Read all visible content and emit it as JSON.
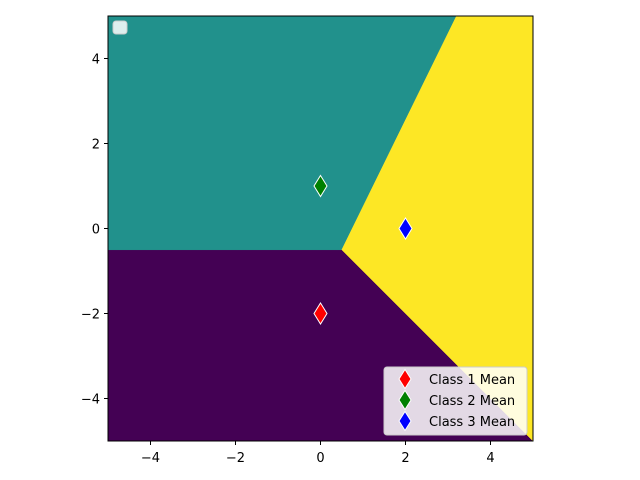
{
  "chart_data": {
    "type": "scatter",
    "title": "",
    "xlabel": "",
    "ylabel": "",
    "xlim": [
      -5,
      5
    ],
    "ylim": [
      -5,
      5
    ],
    "xticks": [
      -4,
      -2,
      0,
      2,
      4
    ],
    "yticks": [
      -4,
      -2,
      0,
      2,
      4
    ],
    "xtick_labels": [
      "−4",
      "−2",
      "0",
      "2",
      "4"
    ],
    "ytick_labels": [
      "−4",
      "−2",
      "0",
      "2",
      "4"
    ],
    "grid": false,
    "decision_regions": [
      {
        "class": 1,
        "color": "#440154",
        "polygon": [
          [
            -5,
            -0.5
          ],
          [
            0.5,
            -0.5
          ],
          [
            5,
            -5
          ],
          [
            -5,
            -5
          ]
        ]
      },
      {
        "class": 2,
        "color": "#21918c",
        "polygon": [
          [
            -5,
            5
          ],
          [
            3.2,
            5
          ],
          [
            0.5,
            -0.5
          ],
          [
            -5,
            -0.5
          ]
        ]
      },
      {
        "class": 3,
        "color": "#fde725",
        "polygon": [
          [
            3.2,
            5
          ],
          [
            5,
            5
          ],
          [
            5,
            -5
          ],
          [
            0.5,
            -0.5
          ]
        ]
      }
    ],
    "series": [
      {
        "name": "Class 1 Mean",
        "color": "#ff0000",
        "marker": "diamond",
        "x": [
          0
        ],
        "y": [
          -2
        ]
      },
      {
        "name": "Class 2 Mean",
        "color": "#008000",
        "marker": "diamond",
        "x": [
          0
        ],
        "y": [
          1
        ]
      },
      {
        "name": "Class 3 Mean",
        "color": "#0000ff",
        "marker": "diamond",
        "x": [
          2
        ],
        "y": [
          0
        ]
      }
    ],
    "legend": {
      "placement": "lower-right",
      "entries": [
        "Class 1 Mean",
        "Class 2 Mean",
        "Class 3 Mean"
      ]
    },
    "empty_legend_placement": "upper-left"
  }
}
